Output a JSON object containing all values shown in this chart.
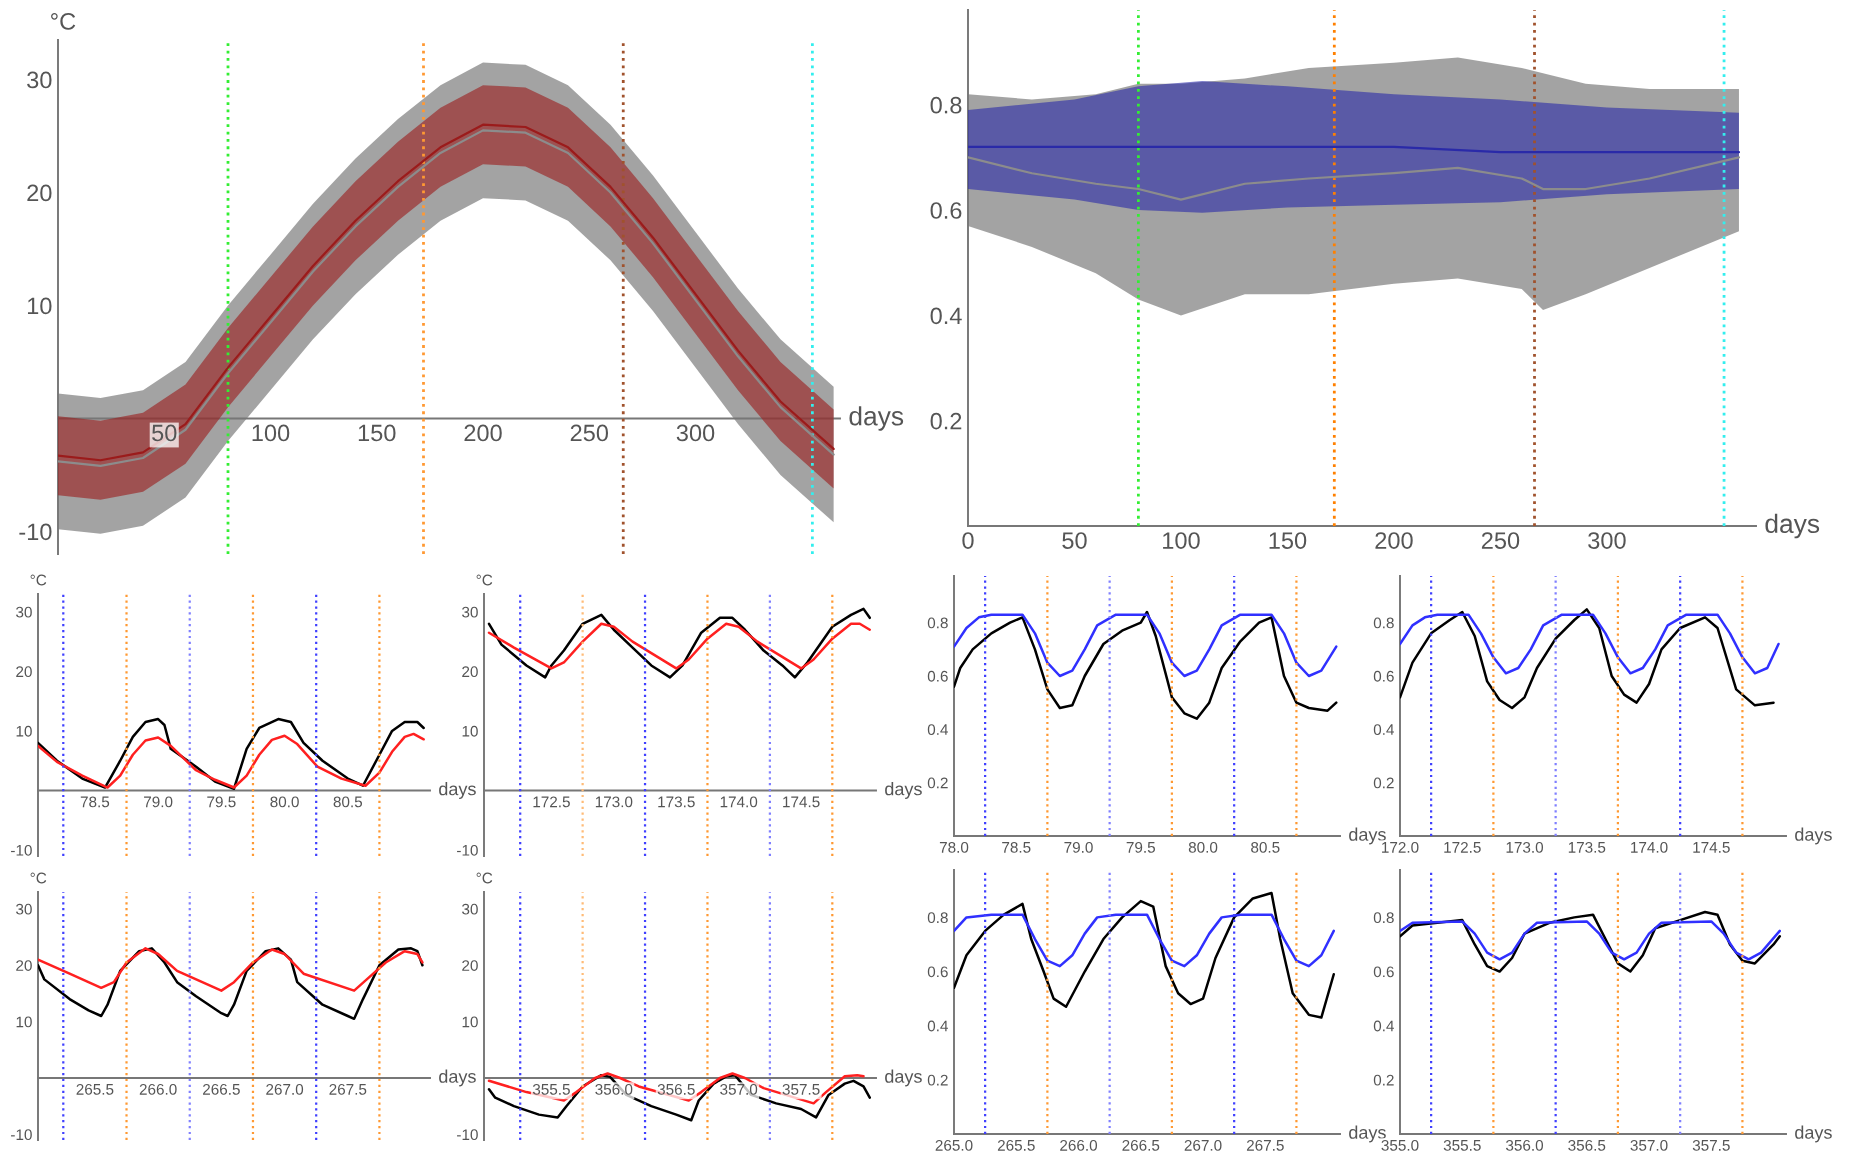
{
  "chart_data": [
    {
      "type": "line",
      "xlabel": "days",
      "ylabel": "°C",
      "xlim": [
        0,
        368
      ],
      "ylim": [
        -12,
        33.5
      ],
      "xticks": [
        50,
        100,
        150,
        200,
        250,
        300
      ],
      "yticks": [
        -10,
        10,
        20,
        30
      ],
      "series": [
        {
          "color": "#8c8c8c",
          "x": [
            0,
            20,
            40,
            60,
            80,
            100,
            120,
            140,
            160,
            180,
            200,
            220,
            240,
            260,
            280,
            300,
            320,
            340,
            365
          ],
          "values": [
            -3.8,
            -4.2,
            -3.5,
            -1,
            4,
            8.5,
            13,
            17,
            20.5,
            23.5,
            25.5,
            25.3,
            23.5,
            20,
            15.5,
            10.5,
            5.5,
            1,
            -3.2
          ],
          "lower": [
            -9.8,
            -10.2,
            -9.5,
            -7,
            -2,
            2.5,
            7,
            11,
            14.5,
            17.5,
            19.5,
            19.3,
            17.5,
            14,
            9.5,
            4.5,
            -0.5,
            -5,
            -9.2
          ],
          "upper": [
            2.2,
            1.8,
            2.5,
            5,
            10,
            14.5,
            19,
            23,
            26.5,
            29.5,
            31.5,
            31.3,
            29.5,
            26,
            21.5,
            16.5,
            11.5,
            7,
            2.8
          ]
        },
        {
          "color": "#9b1b1b",
          "x": [
            0,
            20,
            40,
            60,
            80,
            100,
            120,
            140,
            160,
            180,
            200,
            220,
            240,
            260,
            280,
            300,
            320,
            340,
            365
          ],
          "values": [
            -3.3,
            -3.7,
            -3.0,
            -0.5,
            4.5,
            9,
            13.5,
            17.5,
            21,
            24,
            26,
            25.8,
            24,
            20.5,
            16,
            11,
            6,
            1.5,
            -2.7
          ],
          "lower": [
            -6.8,
            -7.2,
            -6.5,
            -4,
            1,
            5.5,
            10,
            14,
            17.5,
            20.5,
            22.5,
            22.3,
            20.5,
            17,
            12.5,
            7.5,
            2.5,
            -2,
            -6.2
          ],
          "upper": [
            0.2,
            -0.2,
            0.5,
            3,
            8,
            12.5,
            17,
            21,
            24.5,
            27.5,
            29.5,
            29.3,
            27.5,
            24,
            19.5,
            14.5,
            9.5,
            5,
            0.8
          ]
        }
      ],
      "ref_lines": [
        {
          "axis": "x",
          "value": 80,
          "color": "#33ee33",
          "line_style": "dotted"
        },
        {
          "axis": "x",
          "value": 172,
          "color": "#ff9933",
          "line_style": "dotted"
        },
        {
          "axis": "x",
          "value": 266,
          "color": "#a0522d",
          "line_style": "dotted"
        },
        {
          "axis": "x",
          "value": 355,
          "color": "#33eeee",
          "line_style": "dotted"
        }
      ]
    },
    {
      "type": "line",
      "xlabel": "days",
      "xlim": [
        0,
        370
      ],
      "ylim": [
        0,
        0.98
      ],
      "xticks": [
        0,
        50,
        100,
        150,
        200,
        250,
        300
      ],
      "yticks": [
        0.2,
        0.4,
        0.6,
        0.8
      ],
      "series": [
        {
          "color": "#8c8c8c",
          "x": [
            0,
            30,
            60,
            80,
            100,
            130,
            160,
            200,
            230,
            260,
            270,
            290,
            320,
            362
          ],
          "values": [
            0.7,
            0.67,
            0.65,
            0.64,
            0.62,
            0.65,
            0.66,
            0.67,
            0.68,
            0.66,
            0.64,
            0.64,
            0.66,
            0.7
          ],
          "lower": [
            0.57,
            0.53,
            0.48,
            0.43,
            0.4,
            0.44,
            0.44,
            0.46,
            0.47,
            0.45,
            0.41,
            0.44,
            0.49,
            0.56
          ],
          "upper": [
            0.82,
            0.81,
            0.82,
            0.84,
            0.84,
            0.85,
            0.87,
            0.88,
            0.89,
            0.87,
            0.86,
            0.84,
            0.83,
            0.83
          ]
        },
        {
          "color": "#2a2aa8",
          "x": [
            0,
            50,
            80,
            110,
            150,
            200,
            250,
            300,
            362
          ],
          "values": [
            0.72,
            0.72,
            0.72,
            0.72,
            0.72,
            0.72,
            0.71,
            0.71,
            0.71
          ],
          "lower": [
            0.64,
            0.62,
            0.6,
            0.595,
            0.605,
            0.61,
            0.615,
            0.63,
            0.64
          ],
          "upper": [
            0.79,
            0.81,
            0.835,
            0.845,
            0.835,
            0.82,
            0.81,
            0.795,
            0.785
          ]
        }
      ],
      "ref_lines": [
        {
          "axis": "x",
          "value": 80,
          "color": "#33ee33",
          "line_style": "dotted"
        },
        {
          "axis": "x",
          "value": 172,
          "color": "#ff8000",
          "line_style": "dotted"
        },
        {
          "axis": "x",
          "value": 266,
          "color": "#a0522d",
          "line_style": "dotted"
        },
        {
          "axis": "x",
          "value": 355,
          "color": "#33eeee",
          "line_style": "dotted"
        }
      ]
    },
    {
      "type": "line",
      "xlabel": "days",
      "ylabel": "°C",
      "xlim": [
        78.05,
        81.15
      ],
      "ylim": [
        -11,
        33
      ],
      "xticks": [
        78.5,
        {
          "value": 79,
          "label": "79.0"
        },
        79.5,
        {
          "value": 80,
          "label": "80.0"
        },
        80.5
      ],
      "yticks": [
        -10,
        10,
        20,
        30
      ],
      "series": [
        {
          "color": "#000000",
          "x": [
            78.05,
            78.2,
            78.4,
            78.58,
            78.7,
            78.8,
            78.9,
            79.0,
            79.05,
            79.1,
            79.3,
            79.45,
            79.6,
            79.7,
            79.8,
            79.95,
            80.05,
            80.15,
            80.3,
            80.5,
            80.62,
            80.75,
            80.85,
            80.95,
            81.05,
            81.1
          ],
          "values": [
            8,
            5,
            2,
            0.5,
            5,
            9,
            11.5,
            12,
            11,
            7,
            4,
            1.5,
            0.3,
            7,
            10.5,
            12,
            11.5,
            8,
            5,
            2,
            0.8,
            6,
            10,
            11.5,
            11.5,
            10.5
          ]
        },
        {
          "color": "#ff2020",
          "x": [
            78.05,
            78.2,
            78.4,
            78.6,
            78.7,
            78.8,
            78.9,
            79.0,
            79.1,
            79.3,
            79.45,
            79.6,
            79.7,
            79.8,
            79.9,
            80.0,
            80.1,
            80.26,
            80.45,
            80.64,
            80.75,
            80.85,
            80.95,
            81.02,
            81.1
          ],
          "values": [
            7.5,
            4.8,
            2.5,
            0.5,
            2.5,
            6,
            8.4,
            8.9,
            7.5,
            3.4,
            1.8,
            0.5,
            2.5,
            6,
            8.5,
            9.2,
            7.8,
            4,
            2,
            0.8,
            3,
            6.5,
            9,
            9.5,
            8.6
          ]
        }
      ],
      "ref_lines": [
        {
          "axis": "x",
          "value": 78.25,
          "color": "#4040ff",
          "line_style": "dotted"
        },
        {
          "axis": "x",
          "value": 78.75,
          "color": "#ff9933",
          "line_style": "dotted"
        },
        {
          "axis": "x",
          "value": 79.25,
          "color": "#8080ff",
          "line_style": "dotted"
        },
        {
          "axis": "x",
          "value": 79.75,
          "color": "#ff9933",
          "line_style": "dotted"
        },
        {
          "axis": "x",
          "value": 80.25,
          "color": "#4040ff",
          "line_style": "dotted"
        },
        {
          "axis": "x",
          "value": 80.75,
          "color": "#ff9933",
          "line_style": "dotted"
        }
      ]
    },
    {
      "type": "line",
      "xlabel": "days",
      "ylabel": "°C",
      "xlim": [
        171.96,
        175.1
      ],
      "ylim": [
        -11,
        33
      ],
      "xticks": [
        172.5,
        {
          "value": 173,
          "label": "173.0"
        },
        173.5,
        {
          "value": 174,
          "label": "174.0"
        },
        174.5
      ],
      "yticks": [
        -10,
        10,
        20,
        30
      ],
      "series": [
        {
          "color": "#000000",
          "x": [
            172.0,
            172.1,
            172.3,
            172.45,
            172.5,
            172.6,
            172.75,
            172.9,
            173.0,
            173.15,
            173.3,
            173.45,
            173.55,
            173.7,
            173.85,
            173.95,
            174.05,
            174.2,
            174.35,
            174.45,
            174.55,
            174.75,
            174.9,
            175.0,
            175.05
          ],
          "values": [
            28,
            24.5,
            21,
            19,
            21,
            23.5,
            28,
            29.5,
            27,
            24,
            21,
            19,
            21,
            26.5,
            29,
            29,
            27,
            23.5,
            21,
            19,
            21.5,
            27.5,
            29.5,
            30.5,
            29
          ]
        },
        {
          "color": "#ff2020",
          "x": [
            172.0,
            172.2,
            172.5,
            172.6,
            172.75,
            172.9,
            173.0,
            173.15,
            173.5,
            173.6,
            173.75,
            173.9,
            174.0,
            174.15,
            174.5,
            174.6,
            174.75,
            174.9,
            174.97,
            175.05
          ],
          "values": [
            26.5,
            24,
            20.5,
            21.5,
            25,
            28,
            27.5,
            25,
            20.5,
            22,
            25.5,
            28,
            27.5,
            25,
            20.5,
            22,
            25.5,
            28,
            28,
            27
          ]
        }
      ],
      "ref_lines": [
        {
          "axis": "x",
          "value": 172.25,
          "color": "#4040ff",
          "line_style": "dotted"
        },
        {
          "axis": "x",
          "value": 172.75,
          "color": "#ffbb77",
          "line_style": "dotted"
        },
        {
          "axis": "x",
          "value": 173.25,
          "color": "#4040ff",
          "line_style": "dotted"
        },
        {
          "axis": "x",
          "value": 173.75,
          "color": "#ff9933",
          "line_style": "dotted"
        },
        {
          "axis": "x",
          "value": 174.25,
          "color": "#8080ff",
          "line_style": "dotted"
        },
        {
          "axis": "x",
          "value": 174.75,
          "color": "#ff9933",
          "line_style": "dotted"
        }
      ]
    },
    {
      "type": "line",
      "xlabel": "days",
      "ylabel": "°C",
      "xlim": [
        265.05,
        268.15
      ],
      "ylim": [
        -11,
        33
      ],
      "xticks": [
        265.5,
        {
          "value": 266,
          "label": "266.0"
        },
        266.5,
        {
          "value": 267,
          "label": "267.0"
        },
        267.5
      ],
      "yticks": [
        -10,
        10,
        20,
        30
      ],
      "series": [
        {
          "color": "#000000",
          "x": [
            265.05,
            265.1,
            265.3,
            265.45,
            265.55,
            265.6,
            265.7,
            265.85,
            265.95,
            266.05,
            266.15,
            266.3,
            266.5,
            266.55,
            266.6,
            266.7,
            266.85,
            266.95,
            267.05,
            267.1,
            267.3,
            267.5,
            267.55,
            267.62,
            267.75,
            267.9,
            268.0,
            268.05,
            268.09
          ],
          "values": [
            20,
            17.5,
            14,
            12,
            11,
            13,
            19,
            22.5,
            23,
            20.5,
            17,
            14.5,
            11.5,
            11,
            13,
            19,
            22.5,
            23,
            21,
            17,
            13,
            11,
            10.5,
            14,
            20,
            22.8,
            23,
            22.5,
            20
          ]
        },
        {
          "color": "#ff2020",
          "x": [
            265.05,
            265.3,
            265.55,
            265.65,
            265.75,
            265.9,
            266.0,
            266.15,
            266.5,
            266.6,
            266.75,
            266.9,
            267.0,
            267.15,
            267.55,
            267.65,
            267.8,
            267.95,
            268.05,
            268.09
          ],
          "values": [
            21,
            18.5,
            16,
            17,
            20.5,
            23,
            22,
            19,
            15.5,
            17,
            20.5,
            22.8,
            22,
            18.5,
            15.5,
            17.5,
            20.5,
            22.5,
            22,
            20.5
          ]
        }
      ],
      "ref_lines": [
        {
          "axis": "x",
          "value": 265.25,
          "color": "#4040ff",
          "line_style": "dotted"
        },
        {
          "axis": "x",
          "value": 265.75,
          "color": "#ff9933",
          "line_style": "dotted"
        },
        {
          "axis": "x",
          "value": 266.25,
          "color": "#8080ff",
          "line_style": "dotted"
        },
        {
          "axis": "x",
          "value": 266.75,
          "color": "#ff9933",
          "line_style": "dotted"
        },
        {
          "axis": "x",
          "value": 267.25,
          "color": "#4040ff",
          "line_style": "dotted"
        },
        {
          "axis": "x",
          "value": 267.75,
          "color": "#ff9933",
          "line_style": "dotted"
        }
      ]
    },
    {
      "type": "line",
      "xlabel": "days",
      "ylabel": "°C",
      "xlim": [
        354.96,
        358.1
      ],
      "ylim": [
        -11,
        33
      ],
      "xticks": [
        355.5,
        {
          "value": 356,
          "label": "356.0"
        },
        356.5,
        {
          "value": 357,
          "label": "357.0"
        },
        357.5
      ],
      "yticks": [
        -10,
        10,
        20,
        30
      ],
      "series": [
        {
          "color": "#000000",
          "x": [
            355.0,
            355.05,
            355.2,
            355.4,
            355.55,
            355.62,
            355.75,
            355.9,
            355.97,
            356.1,
            356.3,
            356.5,
            356.62,
            356.68,
            356.8,
            356.9,
            356.97,
            357.1,
            357.3,
            357.5,
            357.62,
            357.72,
            357.85,
            357.92,
            358.0,
            358.05
          ],
          "values": [
            -2,
            -3.5,
            -5,
            -6.5,
            -7,
            -5,
            -1.5,
            0.5,
            0.2,
            -3,
            -5,
            -6.5,
            -7.5,
            -4,
            -1,
            0.3,
            0.5,
            -3,
            -4.5,
            -5.5,
            -7,
            -3,
            -1,
            -0.5,
            -1.5,
            -3.5
          ]
        },
        {
          "color": "#ff2020",
          "x": [
            355.0,
            355.3,
            355.6,
            355.7,
            355.85,
            355.95,
            356.05,
            356.2,
            356.6,
            356.7,
            356.85,
            356.95,
            357.05,
            357.2,
            357.6,
            357.7,
            357.85,
            357.95,
            358.0
          ],
          "values": [
            -0.5,
            -2.5,
            -4,
            -2.5,
            0,
            0.8,
            0,
            -1.5,
            -4,
            -2.5,
            0,
            0.8,
            0,
            -1.8,
            -4.5,
            -2.5,
            0.3,
            0.5,
            0.3
          ]
        }
      ],
      "ref_lines": [
        {
          "axis": "x",
          "value": 355.25,
          "color": "#4040ff",
          "line_style": "dotted"
        },
        {
          "axis": "x",
          "value": 355.75,
          "color": "#ffbb77",
          "line_style": "dotted"
        },
        {
          "axis": "x",
          "value": 356.25,
          "color": "#4040ff",
          "line_style": "dotted"
        },
        {
          "axis": "x",
          "value": 356.75,
          "color": "#ff9933",
          "line_style": "dotted"
        },
        {
          "axis": "x",
          "value": 357.25,
          "color": "#8080ff",
          "line_style": "dotted"
        },
        {
          "axis": "x",
          "value": 357.75,
          "color": "#ff9933",
          "line_style": "dotted"
        }
      ]
    },
    {
      "type": "line",
      "xlabel": "days",
      "xlim": [
        78.0,
        81.1
      ],
      "ylim": [
        0,
        0.975
      ],
      "xticks": [
        {
          "value": 78,
          "label": "78.0"
        },
        78.5,
        {
          "value": 79,
          "label": "79.0"
        },
        79.5,
        {
          "value": 80,
          "label": "80.0"
        },
        80.5
      ],
      "yticks": [
        0.2,
        0.4,
        0.6,
        0.8
      ],
      "series": [
        {
          "color": "#000000",
          "x": [
            78.0,
            78.05,
            78.15,
            78.3,
            78.45,
            78.55,
            78.65,
            78.75,
            78.85,
            78.95,
            79.05,
            79.2,
            79.35,
            79.5,
            79.55,
            79.62,
            79.75,
            79.85,
            79.95,
            80.05,
            80.15,
            80.3,
            80.45,
            80.55,
            80.65,
            80.75,
            80.85,
            81.0,
            81.07
          ],
          "values": [
            0.56,
            0.63,
            0.7,
            0.76,
            0.8,
            0.82,
            0.7,
            0.55,
            0.48,
            0.49,
            0.6,
            0.72,
            0.77,
            0.8,
            0.84,
            0.75,
            0.52,
            0.46,
            0.44,
            0.5,
            0.63,
            0.73,
            0.8,
            0.82,
            0.6,
            0.5,
            0.48,
            0.47,
            0.5
          ]
        },
        {
          "color": "#3030ff",
          "x": [
            78.0,
            78.1,
            78.2,
            78.3,
            78.55,
            78.65,
            78.75,
            78.85,
            78.95,
            79.05,
            79.15,
            79.3,
            79.55,
            79.65,
            79.75,
            79.85,
            79.95,
            80.05,
            80.15,
            80.3,
            80.55,
            80.65,
            80.75,
            80.85,
            80.95,
            81.07
          ],
          "values": [
            0.71,
            0.78,
            0.82,
            0.83,
            0.83,
            0.76,
            0.65,
            0.6,
            0.62,
            0.7,
            0.79,
            0.83,
            0.83,
            0.76,
            0.65,
            0.6,
            0.62,
            0.7,
            0.79,
            0.83,
            0.83,
            0.76,
            0.65,
            0.6,
            0.62,
            0.71
          ]
        }
      ],
      "ref_lines": [
        {
          "axis": "x",
          "value": 78.25,
          "color": "#4040ff",
          "line_style": "dotted"
        },
        {
          "axis": "x",
          "value": 78.75,
          "color": "#ff9933",
          "line_style": "dotted"
        },
        {
          "axis": "x",
          "value": 79.25,
          "color": "#8080ff",
          "line_style": "dotted"
        },
        {
          "axis": "x",
          "value": 79.75,
          "color": "#ff9933",
          "line_style": "dotted"
        },
        {
          "axis": "x",
          "value": 80.25,
          "color": "#4040ff",
          "line_style": "dotted"
        },
        {
          "axis": "x",
          "value": 80.75,
          "color": "#ff9933",
          "line_style": "dotted"
        }
      ]
    },
    {
      "type": "line",
      "xlabel": "days",
      "xlim": [
        172.0,
        175.1
      ],
      "ylim": [
        0,
        0.975
      ],
      "xticks": [
        {
          "value": 172,
          "label": "172.0"
        },
        172.5,
        {
          "value": 173,
          "label": "173.0"
        },
        173.5,
        {
          "value": 174,
          "label": "174.0"
        },
        174.5
      ],
      "yticks": [
        0.2,
        0.4,
        0.6,
        0.8
      ],
      "series": [
        {
          "color": "#000000",
          "x": [
            172.0,
            172.1,
            172.25,
            172.4,
            172.5,
            172.6,
            172.7,
            172.8,
            172.9,
            173.0,
            173.1,
            173.25,
            173.4,
            173.5,
            173.6,
            173.7,
            173.8,
            173.9,
            174.0,
            174.1,
            174.25,
            174.45,
            174.55,
            174.7,
            174.85,
            175.0
          ],
          "values": [
            0.52,
            0.65,
            0.76,
            0.81,
            0.84,
            0.75,
            0.58,
            0.51,
            0.48,
            0.52,
            0.63,
            0.74,
            0.81,
            0.85,
            0.78,
            0.6,
            0.53,
            0.5,
            0.57,
            0.7,
            0.78,
            0.82,
            0.78,
            0.55,
            0.49,
            0.5
          ]
        },
        {
          "color": "#3030ff",
          "x": [
            172.0,
            172.1,
            172.2,
            172.3,
            172.55,
            172.65,
            172.75,
            172.85,
            172.95,
            173.05,
            173.15,
            173.3,
            173.55,
            173.65,
            173.75,
            173.85,
            173.95,
            174.05,
            174.15,
            174.3,
            174.55,
            174.65,
            174.75,
            174.85,
            174.95,
            175.04
          ],
          "values": [
            0.72,
            0.79,
            0.82,
            0.83,
            0.83,
            0.76,
            0.67,
            0.61,
            0.63,
            0.7,
            0.79,
            0.83,
            0.83,
            0.76,
            0.67,
            0.61,
            0.63,
            0.7,
            0.79,
            0.83,
            0.83,
            0.76,
            0.67,
            0.61,
            0.63,
            0.72
          ]
        }
      ],
      "ref_lines": [
        {
          "axis": "x",
          "value": 172.25,
          "color": "#4040ff",
          "line_style": "dotted"
        },
        {
          "axis": "x",
          "value": 172.75,
          "color": "#ff9933",
          "line_style": "dotted"
        },
        {
          "axis": "x",
          "value": 173.25,
          "color": "#8080ff",
          "line_style": "dotted"
        },
        {
          "axis": "x",
          "value": 173.75,
          "color": "#ff9933",
          "line_style": "dotted"
        },
        {
          "axis": "x",
          "value": 174.25,
          "color": "#4040ff",
          "line_style": "dotted"
        },
        {
          "axis": "x",
          "value": 174.75,
          "color": "#ff9933",
          "line_style": "dotted"
        }
      ]
    },
    {
      "type": "line",
      "xlabel": "days",
      "xlim": [
        265.0,
        268.1
      ],
      "ylim": [
        0,
        0.975
      ],
      "xticks": [
        {
          "value": 265,
          "label": "265.0"
        },
        265.5,
        {
          "value": 266,
          "label": "266.0"
        },
        266.5,
        {
          "value": 267,
          "label": "267.0"
        },
        267.5
      ],
      "yticks": [
        0.2,
        0.4,
        0.6,
        0.8
      ],
      "series": [
        {
          "color": "#000000",
          "x": [
            265.0,
            265.1,
            265.25,
            265.4,
            265.55,
            265.62,
            265.72,
            265.8,
            265.9,
            266.05,
            266.2,
            266.35,
            266.5,
            266.6,
            266.7,
            266.8,
            266.9,
            267.0,
            267.1,
            267.25,
            267.4,
            267.55,
            267.62,
            267.72,
            267.85,
            267.95,
            268.05
          ],
          "values": [
            0.54,
            0.66,
            0.75,
            0.81,
            0.85,
            0.72,
            0.6,
            0.5,
            0.47,
            0.6,
            0.72,
            0.8,
            0.86,
            0.84,
            0.62,
            0.52,
            0.48,
            0.5,
            0.65,
            0.8,
            0.87,
            0.89,
            0.72,
            0.52,
            0.44,
            0.43,
            0.59
          ]
        },
        {
          "color": "#3030ff",
          "x": [
            265.0,
            265.1,
            265.3,
            265.55,
            265.65,
            265.75,
            265.85,
            265.95,
            266.05,
            266.15,
            266.3,
            266.55,
            266.65,
            266.75,
            266.85,
            266.95,
            267.05,
            267.15,
            267.3,
            267.55,
            267.65,
            267.75,
            267.85,
            267.95,
            268.05
          ],
          "values": [
            0.75,
            0.8,
            0.81,
            0.81,
            0.72,
            0.64,
            0.62,
            0.66,
            0.74,
            0.8,
            0.81,
            0.81,
            0.72,
            0.64,
            0.62,
            0.66,
            0.74,
            0.8,
            0.81,
            0.81,
            0.72,
            0.64,
            0.62,
            0.66,
            0.75
          ]
        }
      ],
      "ref_lines": [
        {
          "axis": "x",
          "value": 265.25,
          "color": "#4040ff",
          "line_style": "dotted"
        },
        {
          "axis": "x",
          "value": 265.75,
          "color": "#ff9933",
          "line_style": "dotted"
        },
        {
          "axis": "x",
          "value": 266.25,
          "color": "#8080ff",
          "line_style": "dotted"
        },
        {
          "axis": "x",
          "value": 266.75,
          "color": "#ff9933",
          "line_style": "dotted"
        },
        {
          "axis": "x",
          "value": 267.25,
          "color": "#4040ff",
          "line_style": "dotted"
        },
        {
          "axis": "x",
          "value": 267.75,
          "color": "#ff9933",
          "line_style": "dotted"
        }
      ]
    },
    {
      "type": "line",
      "xlabel": "days",
      "xlim": [
        355.0,
        358.1
      ],
      "ylim": [
        0,
        0.975
      ],
      "xticks": [
        {
          "value": 355,
          "label": "355.0"
        },
        355.5,
        {
          "value": 356,
          "label": "356.0"
        },
        356.5,
        {
          "value": 357,
          "label": "357.0"
        },
        357.5
      ],
      "yticks": [
        0.2,
        0.4,
        0.6,
        0.8
      ],
      "series": [
        {
          "color": "#000000",
          "x": [
            355.0,
            355.1,
            355.3,
            355.5,
            355.6,
            355.7,
            355.8,
            355.9,
            356.0,
            356.2,
            356.4,
            356.55,
            356.65,
            356.75,
            356.85,
            356.95,
            357.05,
            357.25,
            357.45,
            357.55,
            357.65,
            357.75,
            357.85,
            358.0,
            358.05
          ],
          "values": [
            0.73,
            0.77,
            0.78,
            0.79,
            0.7,
            0.62,
            0.6,
            0.65,
            0.74,
            0.78,
            0.8,
            0.81,
            0.72,
            0.63,
            0.6,
            0.66,
            0.76,
            0.79,
            0.82,
            0.81,
            0.7,
            0.64,
            0.63,
            0.7,
            0.73
          ]
        },
        {
          "color": "#3030ff",
          "x": [
            355.0,
            355.1,
            355.5,
            355.6,
            355.7,
            355.8,
            355.9,
            356.0,
            356.1,
            356.5,
            356.6,
            356.7,
            356.8,
            356.9,
            357.0,
            357.1,
            357.5,
            357.6,
            357.7,
            357.8,
            357.9,
            358.05
          ],
          "values": [
            0.75,
            0.78,
            0.785,
            0.74,
            0.67,
            0.645,
            0.67,
            0.74,
            0.78,
            0.785,
            0.74,
            0.67,
            0.645,
            0.67,
            0.74,
            0.78,
            0.785,
            0.74,
            0.67,
            0.645,
            0.67,
            0.75
          ]
        }
      ],
      "ref_lines": [
        {
          "axis": "x",
          "value": 355.25,
          "color": "#4040ff",
          "line_style": "dotted"
        },
        {
          "axis": "x",
          "value": 355.75,
          "color": "#ff9933",
          "line_style": "dotted"
        },
        {
          "axis": "x",
          "value": 356.25,
          "color": "#4040ff",
          "line_style": "dotted"
        },
        {
          "axis": "x",
          "value": 356.75,
          "color": "#ff9933",
          "line_style": "dotted"
        },
        {
          "axis": "x",
          "value": 357.25,
          "color": "#8080ff",
          "line_style": "dotted"
        },
        {
          "axis": "x",
          "value": 357.75,
          "color": "#ff9933",
          "line_style": "dotted"
        }
      ]
    }
  ]
}
